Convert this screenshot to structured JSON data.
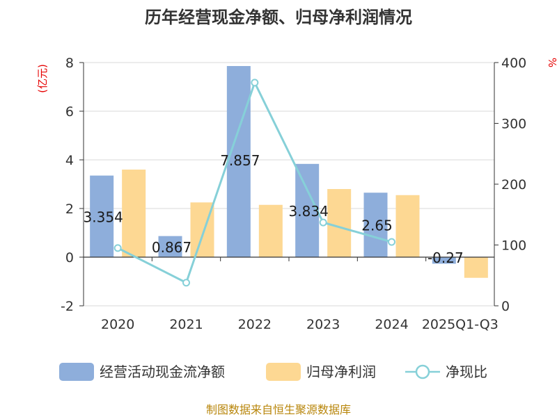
{
  "chart_data": {
    "type": "bar",
    "title": "历年经营现金净额、归母净利润情况",
    "categories": [
      "2020",
      "2021",
      "2022",
      "2023",
      "2024",
      "2025Q1-Q3"
    ],
    "left_axis": {
      "unit": "(亿元)",
      "ticks": [
        "8",
        "6",
        "4",
        "2",
        "0",
        "-2"
      ],
      "range": [
        -2,
        8
      ]
    },
    "right_axis": {
      "unit": "%",
      "ticks": [
        "400",
        "300",
        "200",
        "100",
        "0"
      ],
      "range": [
        0,
        400
      ]
    },
    "series": [
      {
        "name": "经营活动现金流净额",
        "kind": "bar",
        "axis": "left",
        "color": "#8eaedb",
        "values": [
          3.354,
          0.867,
          7.857,
          3.834,
          2.65,
          -0.27
        ],
        "labels": [
          "3.354",
          "0.867",
          "7.857",
          "3.834",
          "2.65",
          "-0.27"
        ]
      },
      {
        "name": "归母净利润",
        "kind": "bar",
        "axis": "left",
        "color": "#fdd893",
        "values": [
          3.6,
          2.25,
          2.15,
          2.8,
          2.55,
          -0.85
        ]
      },
      {
        "name": "净现比",
        "kind": "line",
        "axis": "right",
        "color": "#86d0d8",
        "values": [
          95,
          38,
          367,
          137,
          105,
          null
        ]
      }
    ],
    "grid": true,
    "legend": "bottom"
  },
  "source": "制图数据来自恒生聚源数据库"
}
